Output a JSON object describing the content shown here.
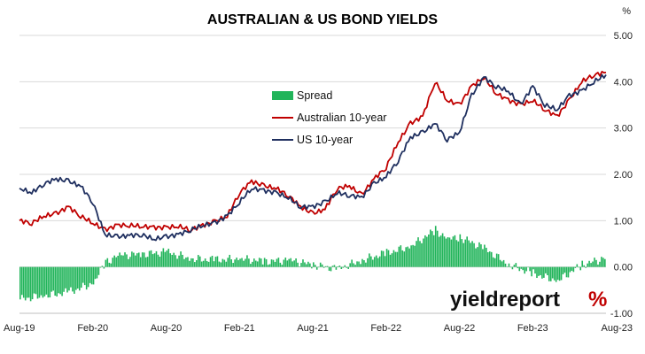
{
  "chart_data": {
    "type": "line",
    "title": "AUSTRALIAN & US BOND YIELDS",
    "y_unit_label": "%",
    "ylim": [
      -1.0,
      5.0
    ],
    "yticks": [
      "5.00",
      "4.00",
      "3.00",
      "2.00",
      "1.00",
      "0.00",
      "-1.00"
    ],
    "x_tick_labels": [
      "Aug-19",
      "Feb-20",
      "Aug-20",
      "Feb-21",
      "Aug-21",
      "Feb-22",
      "Aug-22",
      "Feb-23",
      "Aug-23"
    ],
    "grid": "horizontal",
    "legend_placement": "center",
    "colors": {
      "spread": "#21b45a",
      "aus": "#c00000",
      "us": "#1f2f5f"
    },
    "series": [
      {
        "name": "Spread",
        "kind": "bar",
        "x": [
          "Aug-19",
          "Oct-19",
          "Dec-19",
          "Feb-20",
          "Mar-20",
          "Apr-20",
          "Jun-20",
          "Aug-20",
          "Oct-20",
          "Dec-20",
          "Feb-21",
          "Apr-21",
          "Jun-21",
          "Aug-21",
          "Oct-21",
          "Dec-21",
          "Feb-22",
          "Apr-22",
          "Jun-22",
          "Jul-22",
          "Aug-22",
          "Oct-22",
          "Dec-22",
          "Feb-23",
          "Apr-23",
          "Jun-23",
          "Aug-23"
        ],
        "values": [
          -0.7,
          -0.62,
          -0.55,
          -0.35,
          0.1,
          0.25,
          0.28,
          0.32,
          0.18,
          0.15,
          0.18,
          0.12,
          0.15,
          0.05,
          -0.05,
          0.15,
          0.3,
          0.45,
          0.8,
          0.6,
          0.65,
          0.4,
          0.05,
          -0.15,
          -0.3,
          0.05,
          0.2
        ]
      },
      {
        "name": "Australian 10-year",
        "kind": "line",
        "x": [
          "Aug-19",
          "Sep-19",
          "Oct-19",
          "Nov-19",
          "Dec-19",
          "Jan-20",
          "Feb-20",
          "Mar-20",
          "Apr-20",
          "May-20",
          "Jun-20",
          "Jul-20",
          "Aug-20",
          "Sep-20",
          "Oct-20",
          "Nov-20",
          "Dec-20",
          "Jan-21",
          "Feb-21",
          "Mar-21",
          "Apr-21",
          "May-21",
          "Jun-21",
          "Jul-21",
          "Aug-21",
          "Sep-21",
          "Oct-21",
          "Nov-21",
          "Dec-21",
          "Jan-22",
          "Feb-22",
          "Mar-22",
          "Apr-22",
          "May-22",
          "Jun-22",
          "Jul-22",
          "Aug-22",
          "Sep-22",
          "Oct-22",
          "Nov-22",
          "Dec-22",
          "Jan-23",
          "Feb-23",
          "Mar-23",
          "Apr-23",
          "May-23",
          "Jun-23",
          "Jul-23",
          "Aug-23"
        ],
        "values": [
          1.0,
          0.95,
          1.1,
          1.15,
          1.3,
          1.1,
          0.95,
          0.8,
          0.9,
          0.9,
          0.88,
          0.85,
          0.85,
          0.88,
          0.8,
          0.9,
          0.98,
          1.1,
          1.6,
          1.85,
          1.75,
          1.7,
          1.55,
          1.3,
          1.15,
          1.25,
          1.7,
          1.75,
          1.55,
          1.9,
          2.15,
          2.7,
          3.1,
          3.25,
          4.0,
          3.6,
          3.5,
          3.9,
          4.1,
          3.75,
          3.6,
          3.5,
          3.6,
          3.4,
          3.25,
          3.6,
          4.0,
          4.15,
          4.2
        ]
      },
      {
        "name": "US 10-year",
        "kind": "line",
        "x": [
          "Aug-19",
          "Sep-19",
          "Oct-19",
          "Nov-19",
          "Dec-19",
          "Jan-20",
          "Feb-20",
          "Mar-20",
          "Apr-20",
          "May-20",
          "Jun-20",
          "Jul-20",
          "Aug-20",
          "Sep-20",
          "Oct-20",
          "Nov-20",
          "Dec-20",
          "Jan-21",
          "Feb-21",
          "Mar-21",
          "Apr-21",
          "May-21",
          "Jun-21",
          "Jul-21",
          "Aug-21",
          "Sep-21",
          "Oct-21",
          "Nov-21",
          "Dec-21",
          "Jan-22",
          "Feb-22",
          "Mar-22",
          "Apr-22",
          "May-22",
          "Jun-22",
          "Jul-22",
          "Aug-22",
          "Sep-22",
          "Oct-22",
          "Nov-22",
          "Dec-22",
          "Jan-23",
          "Feb-23",
          "Mar-23",
          "Apr-23",
          "May-23",
          "Jun-23",
          "Jul-23",
          "Aug-23"
        ],
        "values": [
          1.7,
          1.6,
          1.8,
          1.9,
          1.85,
          1.75,
          1.4,
          0.7,
          0.65,
          0.68,
          0.7,
          0.6,
          0.65,
          0.7,
          0.8,
          0.9,
          0.95,
          1.1,
          1.4,
          1.7,
          1.65,
          1.6,
          1.5,
          1.3,
          1.3,
          1.4,
          1.6,
          1.55,
          1.5,
          1.8,
          1.95,
          2.3,
          2.8,
          2.9,
          3.1,
          2.75,
          2.9,
          3.7,
          4.1,
          3.9,
          3.8,
          3.5,
          3.9,
          3.5,
          3.4,
          3.7,
          3.8,
          4.0,
          4.15
        ]
      }
    ]
  },
  "logo": {
    "text": "yieldreport",
    "symbol": "%"
  }
}
